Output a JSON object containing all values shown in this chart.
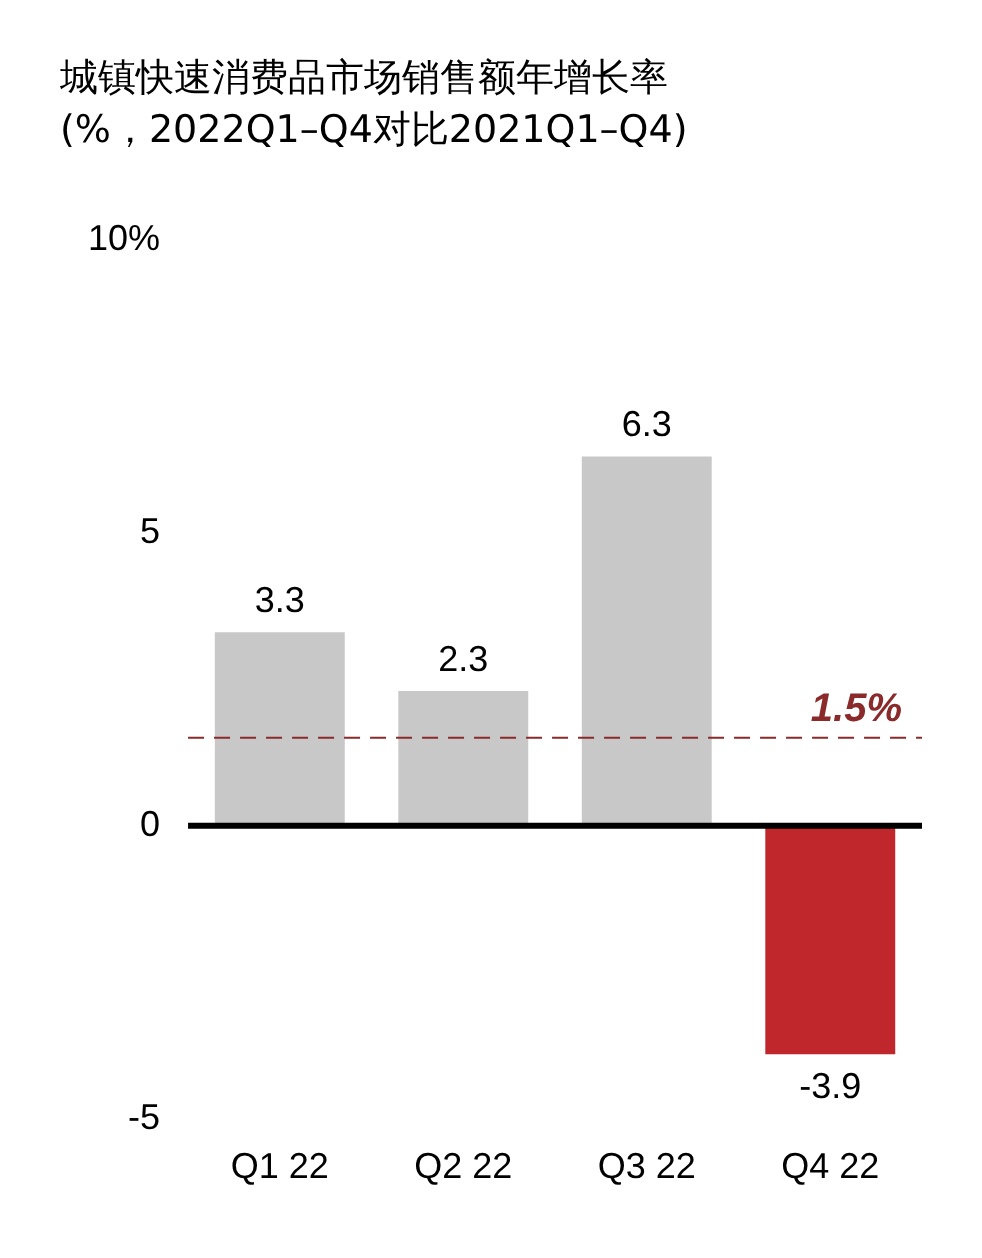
{
  "chart_data": {
    "type": "bar",
    "title": "城镇快速消费品市场销售额年增长率",
    "subtitle": "(%，2022Q1–Q4对比2021Q1–Q4)",
    "categories": [
      "Q1 22",
      "Q2 22",
      "Q3 22",
      "Q4 22"
    ],
    "values": [
      3.3,
      2.3,
      6.3,
      -3.9
    ],
    "colors": [
      "#c8c8c8",
      "#c8c8c8",
      "#c8c8c8",
      "#c0272d"
    ],
    "ylim": [
      -5,
      10
    ],
    "yticks": [
      -5,
      0,
      5,
      {
        "value": 10,
        "label": "10%"
      }
    ],
    "grid": false,
    "legend": false,
    "data_labels": true,
    "ref_lines": [
      {
        "axis": "y",
        "value": 0,
        "color": "#000000",
        "line_style": "solid"
      },
      {
        "axis": "y",
        "value": 1.5,
        "label": "1.5%",
        "color": "#8b2a2a",
        "line_style": "dashed"
      }
    ]
  }
}
